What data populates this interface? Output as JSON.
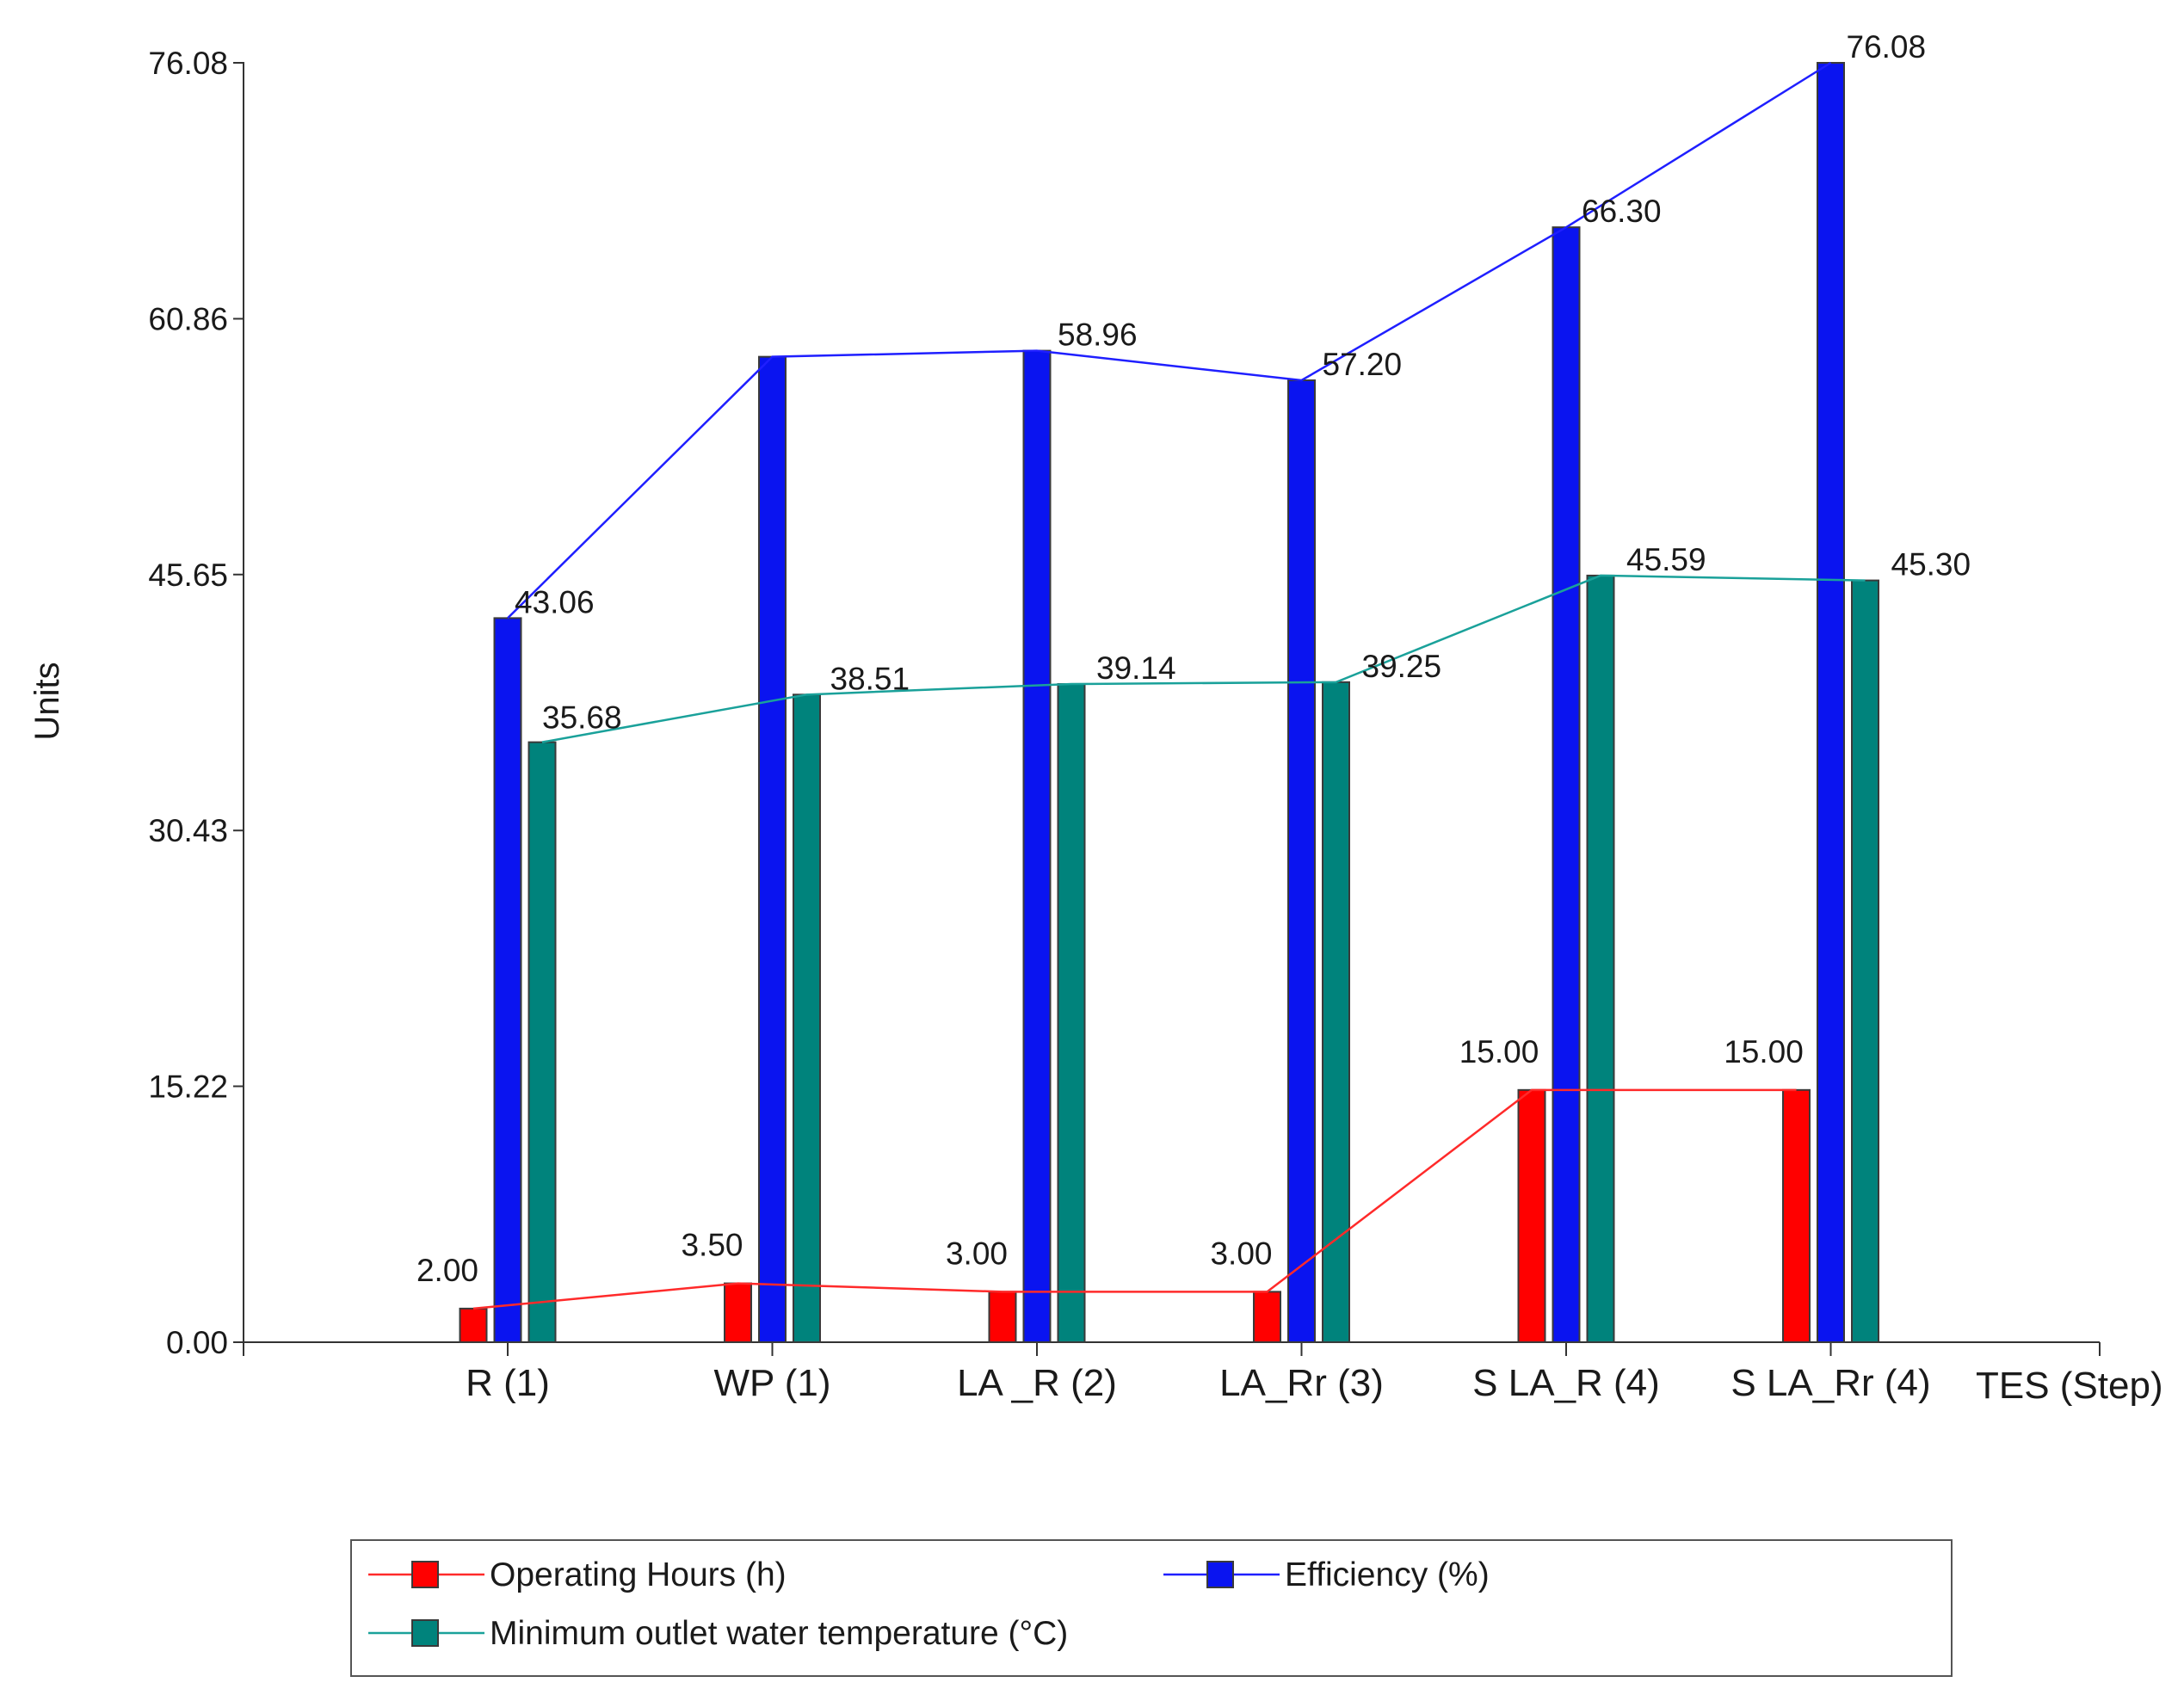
{
  "chart_data": {
    "type": "bar",
    "title": "",
    "xlabel": "TES (Step)",
    "ylabel": "Units",
    "ylim": [
      0,
      76.08
    ],
    "yticks": [
      "0.00",
      "15.22",
      "30.43",
      "45.65",
      "60.86",
      "76.08"
    ],
    "grid": false,
    "legend_position": "bottom",
    "categories": [
      "R (1)",
      "WP (1)",
      "LA _R (2)",
      "LA_Rr (3)",
      "S LA_R (4)",
      "S LA_Rr (4)"
    ],
    "series": [
      {
        "name": "Operating Hours (h)",
        "values": [
          2.0,
          3.5,
          3.0,
          3.0,
          15.0,
          15.0
        ],
        "labels": [
          "2.00",
          "3.50",
          "3.00",
          "3.00",
          "15.00",
          "15.00"
        ],
        "bar_color": "#ff0000",
        "line_color": "#ff2a2a"
      },
      {
        "name": "Efficiency (%)",
        "values": [
          43.06,
          58.6,
          58.96,
          57.2,
          66.3,
          76.08
        ],
        "labels": [
          "43.06",
          "",
          "58.96",
          "57.20",
          "66.30",
          "76.08"
        ],
        "bar_color": "#0a14f0",
        "line_color": "#1f1fff"
      },
      {
        "name": "Minimum outlet water temperature (°C)",
        "values": [
          35.68,
          38.51,
          39.14,
          39.25,
          45.59,
          45.3
        ],
        "labels": [
          "35.68",
          "38.51",
          "39.14",
          "39.25",
          "45.59",
          "45.30"
        ],
        "bar_color": "#00837c",
        "line_color": "#1aa19a"
      }
    ]
  }
}
